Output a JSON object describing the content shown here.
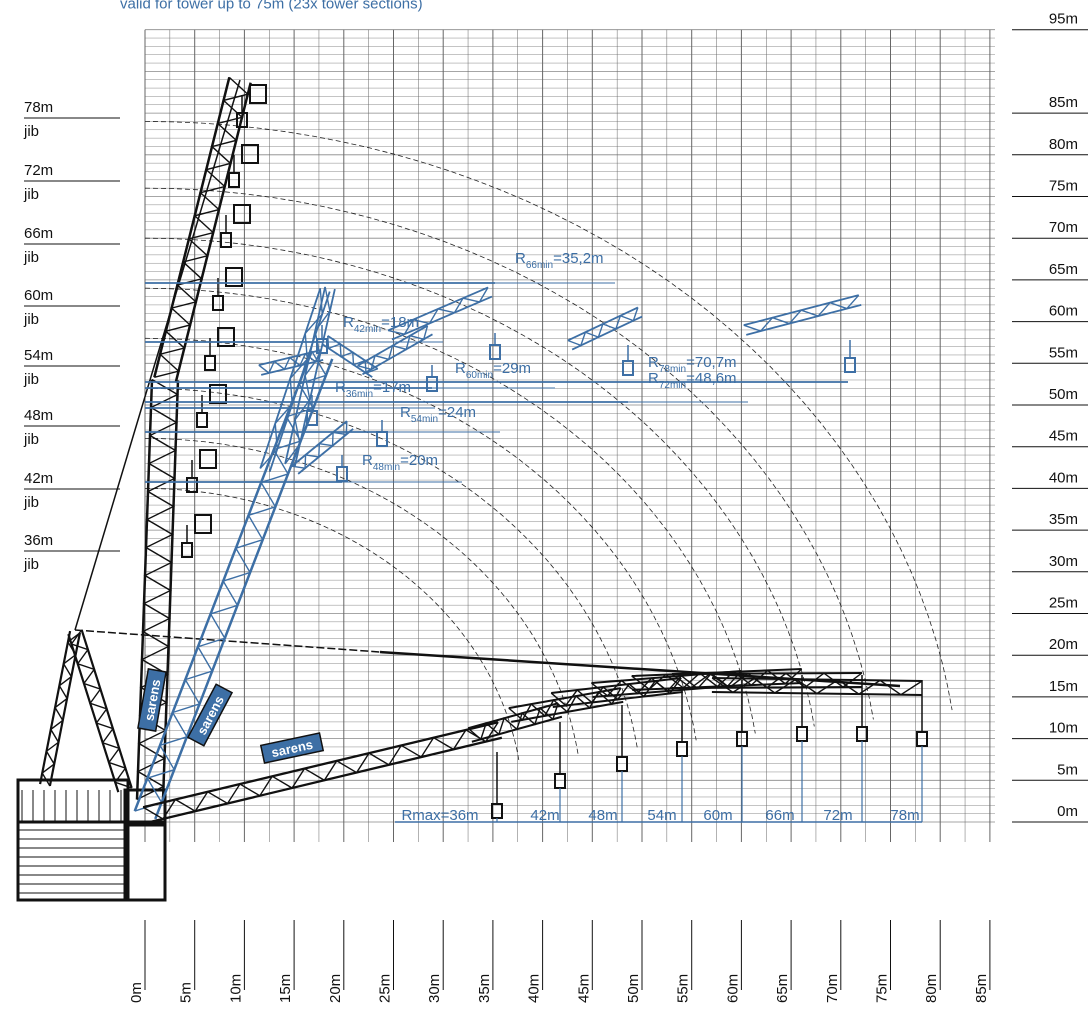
{
  "caption": "valid for tower up to 75m (23x tower sections)",
  "right_axis": {
    "labels": [
      "95m",
      "85m",
      "80m",
      "75m",
      "70m",
      "65m",
      "60m",
      "55m",
      "50m",
      "45m",
      "40m",
      "35m",
      "30m",
      "25m",
      "20m",
      "15m",
      "10m",
      "5m",
      "0m"
    ]
  },
  "bottom_axis": {
    "labels": [
      "0m",
      "5m",
      "10m",
      "15m",
      "20m",
      "25m",
      "30m",
      "35m",
      "40m",
      "45m",
      "50m",
      "55m",
      "60m",
      "65m",
      "70m",
      "75m",
      "80m",
      "85m"
    ]
  },
  "jib_labels": [
    {
      "length": "78m",
      "text": "jib"
    },
    {
      "length": "72m",
      "text": "jib"
    },
    {
      "length": "66m",
      "text": "jib"
    },
    {
      "length": "60m",
      "text": "jib"
    },
    {
      "length": "54m",
      "text": "jib"
    },
    {
      "length": "48m",
      "text": "jib"
    },
    {
      "length": "42m",
      "text": "jib"
    },
    {
      "length": "36m",
      "text": "jib"
    }
  ],
  "radius_annotations": [
    {
      "main": "R",
      "sub": "66min",
      "value": "=35,2m"
    },
    {
      "main": "R",
      "sub": "60min",
      "value": "=29m"
    },
    {
      "main": "R",
      "sub": "72min",
      "value": "=48,6m"
    },
    {
      "main": "R",
      "sub": "54min",
      "value": "=24m"
    },
    {
      "main": "R",
      "sub": "48min",
      "value": "=20m"
    },
    {
      "main": "R",
      "sub": "42min",
      "value": "=18m"
    },
    {
      "main": "R",
      "sub": "78min",
      "value": "=70,7m"
    },
    {
      "main": "R",
      "sub": "36min",
      "value": "=17m"
    }
  ],
  "bottom_dims": [
    "Rmax=36m",
    "42m",
    "48m",
    "54m",
    "60m",
    "66m",
    "72m",
    "78m"
  ],
  "logos": [
    "sarens",
    "sarens",
    "sarens"
  ]
}
